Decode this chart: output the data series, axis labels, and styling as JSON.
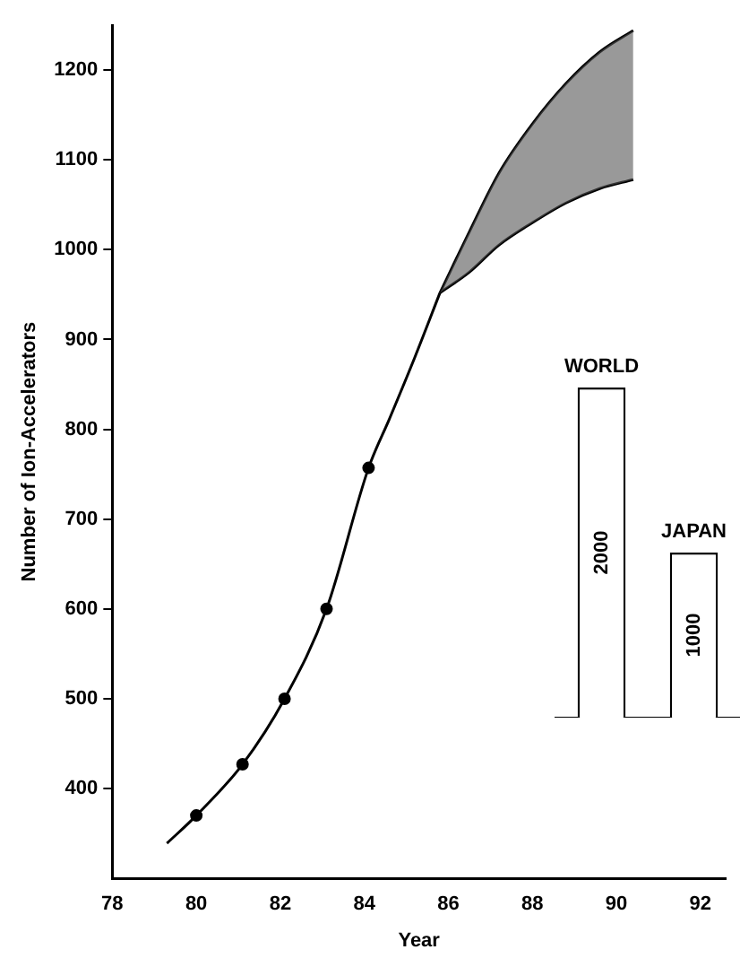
{
  "chart_data": [
    {
      "type": "line",
      "xlabel": "Year",
      "ylabel": "Number of Ion-Accelerators",
      "xlim": [
        78,
        92.6
      ],
      "ylim": [
        300,
        1250
      ],
      "xticks": [
        78,
        80,
        82,
        84,
        86,
        88,
        90,
        92
      ],
      "yticks": [
        400,
        500,
        600,
        700,
        800,
        900,
        1000,
        1100,
        1200
      ],
      "grid": false,
      "legend": false,
      "series": [
        {
          "type": "line",
          "color": "#000000",
          "marker": "none",
          "line_style": "solid",
          "x": [
            79.3,
            80,
            81.1,
            82.1,
            83.1,
            84.1,
            84.6,
            85.2,
            85.8
          ],
          "values": [
            339,
            370,
            427,
            500,
            600,
            757,
            812,
            880,
            952
          ]
        },
        {
          "type": "scatter",
          "color": "#000000",
          "marker": "circle",
          "x": [
            80,
            81.1,
            82.1,
            83.1,
            84.1
          ],
          "values": [
            370,
            427,
            500,
            600,
            757
          ]
        },
        {
          "type": "area",
          "color": "#555555",
          "x": [
            85.8,
            86.5,
            87.2,
            88.0,
            88.8,
            89.6,
            90.4
          ],
          "values": [
            null,
            null,
            null,
            null,
            null,
            null,
            null
          ],
          "lower": [
            952,
            975,
            1005,
            1030,
            1052,
            1068,
            1078
          ],
          "upper": [
            952,
            1020,
            1085,
            1140,
            1185,
            1220,
            1244
          ]
        },
        {
          "type": "line",
          "color": "#000000",
          "marker": "none",
          "line_style": "solid",
          "x": [
            85.8,
            86.5,
            87.2,
            88.0,
            88.8,
            89.6,
            90.4
          ],
          "values": [
            952,
            1020,
            1085,
            1140,
            1185,
            1220,
            1244
          ]
        },
        {
          "type": "line",
          "color": "#000000",
          "marker": "none",
          "line_style": "solid",
          "x": [
            85.8,
            86.5,
            87.2,
            88.0,
            88.8,
            89.6,
            90.4
          ],
          "values": [
            952,
            975,
            1005,
            1030,
            1052,
            1068,
            1078
          ]
        }
      ]
    },
    {
      "type": "bar",
      "categories": [
        "WORLD",
        "JAPAN"
      ],
      "values": [
        2000,
        1000
      ],
      "color": "#ffffff",
      "data_labels": true
    }
  ]
}
